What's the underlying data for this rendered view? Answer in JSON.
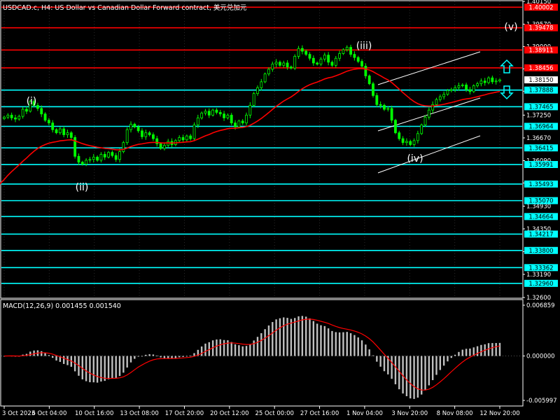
{
  "header": {
    "title": "USDCAD.c, H4:  US Dollar vs Canadian Dollar Forward contract, 美元兑加元"
  },
  "macd": {
    "title": "MACD(12,26,9) 0.001455 0.001540",
    "axis_labels": [
      "0.006859",
      "0.000000",
      "-0.005997"
    ]
  },
  "price_axis": {
    "tick_labels": [
      "1.40150",
      "1.39570",
      "1.39000",
      "1.38430",
      "1.37860",
      "1.37250",
      "1.36670",
      "1.36090",
      "1.35520",
      "1.34930",
      "1.34350",
      "1.33770",
      "1.33190",
      "1.32600"
    ],
    "current_price": "1.38150"
  },
  "levels": [
    {
      "price": "1.40002",
      "color": "#ff0000"
    },
    {
      "price": "1.39478",
      "color": "#ff0000"
    },
    {
      "price": "1.38911",
      "color": "#ff0000"
    },
    {
      "price": "1.38456",
      "color": "#ff0000"
    },
    {
      "price": "1.37888",
      "color": "#00ffff"
    },
    {
      "price": "1.37465",
      "color": "#00ffff"
    },
    {
      "price": "1.36964",
      "color": "#00ffff"
    },
    {
      "price": "1.36415",
      "color": "#00ffff"
    },
    {
      "price": "1.35991",
      "color": "#00ffff"
    },
    {
      "price": "1.35493",
      "color": "#00ffff"
    },
    {
      "price": "1.35070",
      "color": "#00ffff"
    },
    {
      "price": "1.34664",
      "color": "#00ffff"
    },
    {
      "price": "1.34217",
      "color": "#00ffff"
    },
    {
      "price": "1.33800",
      "color": "#00ffff"
    },
    {
      "price": "1.33362",
      "color": "#00ffff"
    },
    {
      "price": "1.32960",
      "color": "#00ffff"
    }
  ],
  "wave_labels": [
    "(i)",
    "(ii)",
    "(iii)",
    "(iv)",
    "(v)"
  ],
  "time_axis": {
    "labels": [
      "3 Oct 2023",
      "6 Oct 04:00",
      "10 Oct 16:00",
      "13 Oct 08:00",
      "17 Oct 20:00",
      "20 Oct 12:00",
      "25 Oct 00:00",
      "27 Oct 16:00",
      "1 Nov 04:00",
      "3 Nov 20:00",
      "8 Nov 08:00",
      "12 Nov 20:00"
    ]
  },
  "colors": {
    "background": "#000000",
    "candles": "#00ff00",
    "moving_average": "#ff0000",
    "resistance": "#ff0000",
    "support": "#00ffff",
    "macd_histogram": "#c0c0c0",
    "macd_signal": "#ff0000",
    "arrows": "#00ffff"
  },
  "icons": {
    "up_arrow": "up-arrow-icon",
    "down_arrow": "down-arrow-icon"
  },
  "chart_data": [
    {
      "type": "candlestick",
      "symbol": "USDCAD.c",
      "timeframe": "H4",
      "x_labels": [
        "3 Oct 2023",
        "6 Oct 04:00",
        "10 Oct 16:00",
        "13 Oct 08:00",
        "17 Oct 20:00",
        "20 Oct 12:00",
        "25 Oct 00:00",
        "27 Oct 16:00",
        "1 Nov 04:00",
        "3 Nov 20:00",
        "8 Nov 08:00",
        "12 Nov 20:00"
      ],
      "ylim": [
        1.326,
        1.4015
      ],
      "closes": [
        1.372,
        1.3725,
        1.3718,
        1.3715,
        1.3722,
        1.374,
        1.3735,
        1.376,
        1.375,
        1.3742,
        1.3728,
        1.3712,
        1.3705,
        1.3688,
        1.368,
        1.369,
        1.3675,
        1.368,
        1.3668,
        1.362,
        1.3605,
        1.36,
        1.361,
        1.3612,
        1.3618,
        1.361,
        1.3625,
        1.3618,
        1.363,
        1.3622,
        1.3612,
        1.3632,
        1.3655,
        1.3688,
        1.3702,
        1.3695,
        1.3685,
        1.367,
        1.368,
        1.3675,
        1.3665,
        1.3652,
        1.364,
        1.3648,
        1.3658,
        1.365,
        1.366,
        1.3668,
        1.3662,
        1.3672,
        1.3665,
        1.37,
        1.3718,
        1.373,
        1.3735,
        1.3725,
        1.3738,
        1.3732,
        1.3728,
        1.3718,
        1.3725,
        1.3705,
        1.3695,
        1.371,
        1.3705,
        1.3725,
        1.375,
        1.378,
        1.3795,
        1.381,
        1.383,
        1.3842,
        1.3855,
        1.386,
        1.3852,
        1.3858,
        1.3848,
        1.3845,
        1.3875,
        1.3895,
        1.3888,
        1.388,
        1.387,
        1.3858,
        1.3855,
        1.3868,
        1.3878,
        1.386,
        1.3852,
        1.387,
        1.3882,
        1.3892,
        1.3898,
        1.388,
        1.3872,
        1.3862,
        1.385,
        1.3825,
        1.3805,
        1.3775,
        1.3752,
        1.375,
        1.374,
        1.3742,
        1.3712,
        1.368,
        1.3665,
        1.3655,
        1.3658,
        1.365,
        1.366,
        1.3678,
        1.37,
        1.372,
        1.3738,
        1.3752,
        1.3765,
        1.3772,
        1.3778,
        1.3788,
        1.379,
        1.3795,
        1.38,
        1.3802,
        1.379,
        1.3785,
        1.38,
        1.3805,
        1.3812,
        1.3808,
        1.382,
        1.381,
        1.3812,
        1.3815
      ],
      "moving_average": {
        "from": 1.355,
        "to": 1.38
      },
      "macd": {
        "ylim": [
          -0.005997,
          0.006859
        ],
        "macd_line_value": 0.001455,
        "signal_value": 0.00154
      }
    }
  ]
}
